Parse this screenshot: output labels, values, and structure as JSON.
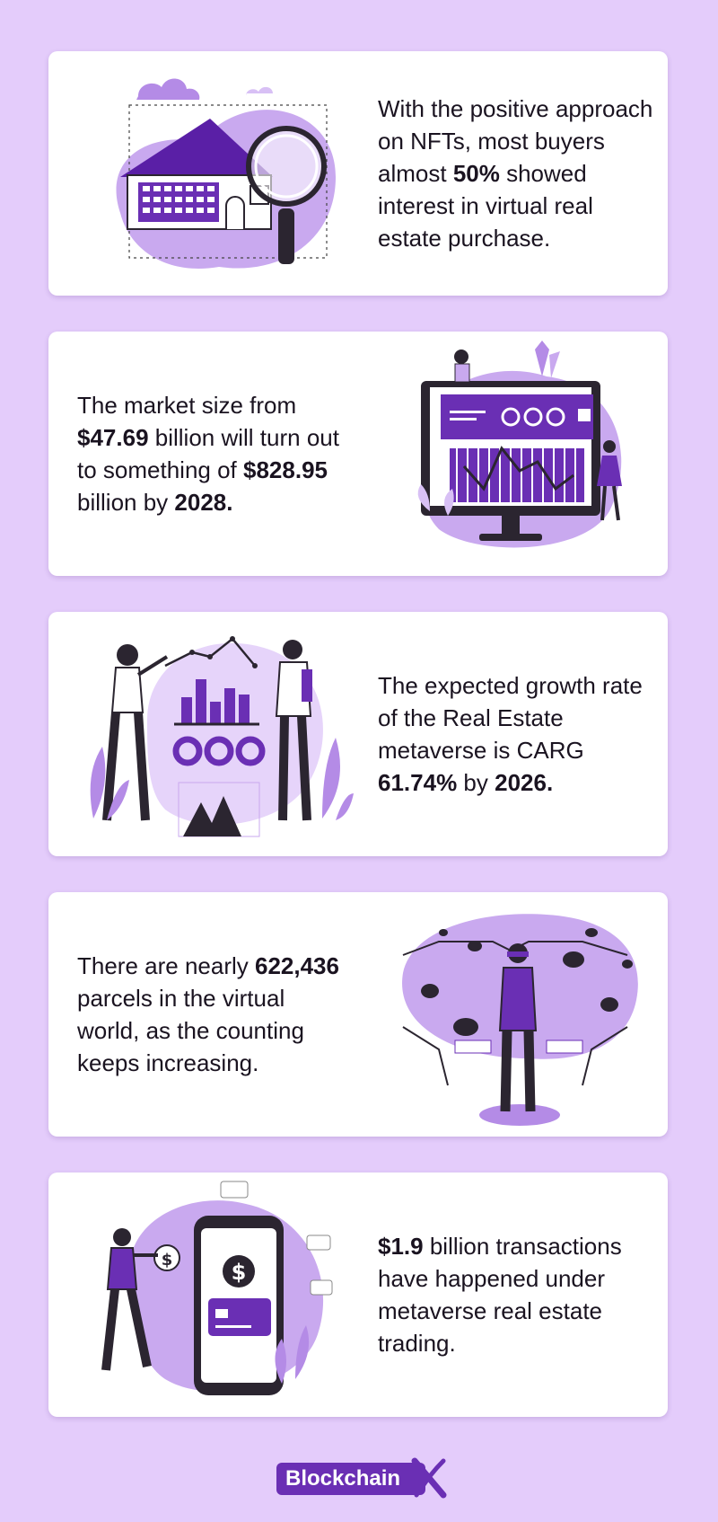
{
  "cards": [
    {
      "segments": [
        {
          "text": "With the positive approach on NFTs, most buyers almost ",
          "bold": false
        },
        {
          "text": "50%",
          "bold": true
        },
        {
          "text": " showed  interest in virtual real estate purchase.",
          "bold": false
        }
      ],
      "illustration": "house-magnifier-icon"
    },
    {
      "segments": [
        {
          "text": "The market size from ",
          "bold": false
        },
        {
          "text": "$47.69",
          "bold": true
        },
        {
          "text": " billion will turn out to something of ",
          "bold": false
        },
        {
          "text": "$828.95",
          "bold": true
        },
        {
          "text": " billion by ",
          "bold": false
        },
        {
          "text": "2028.",
          "bold": true
        }
      ],
      "illustration": "dashboard-monitor-icon"
    },
    {
      "segments": [
        {
          "text": "The expected growth rate of the Real Estate metaverse is CARG ",
          "bold": false
        },
        {
          "text": "61.74%",
          "bold": true
        },
        {
          "text": " by ",
          "bold": false
        },
        {
          "text": "2026.",
          "bold": true
        }
      ],
      "illustration": "people-chart-icon"
    },
    {
      "segments": [
        {
          "text": "There are nearly ",
          "bold": false
        },
        {
          "text": "622,436",
          "bold": true
        },
        {
          "text": " parcels in the virtual world, as the counting keeps increasing.",
          "bold": false
        }
      ],
      "illustration": "virtual-world-person-icon"
    },
    {
      "segments": [
        {
          "text": "$1.9",
          "bold": true
        },
        {
          "text": " billion transactions have happened under metaverse real estate trading.",
          "bold": false
        }
      ],
      "illustration": "phone-payment-icon"
    }
  ],
  "logo": {
    "text": "Blockchain",
    "mark": "X"
  },
  "colors": {
    "background": "#e4ccfb",
    "accent": "#6a2fb4",
    "light": "#c9a9ef",
    "dark": "#2b2530"
  }
}
